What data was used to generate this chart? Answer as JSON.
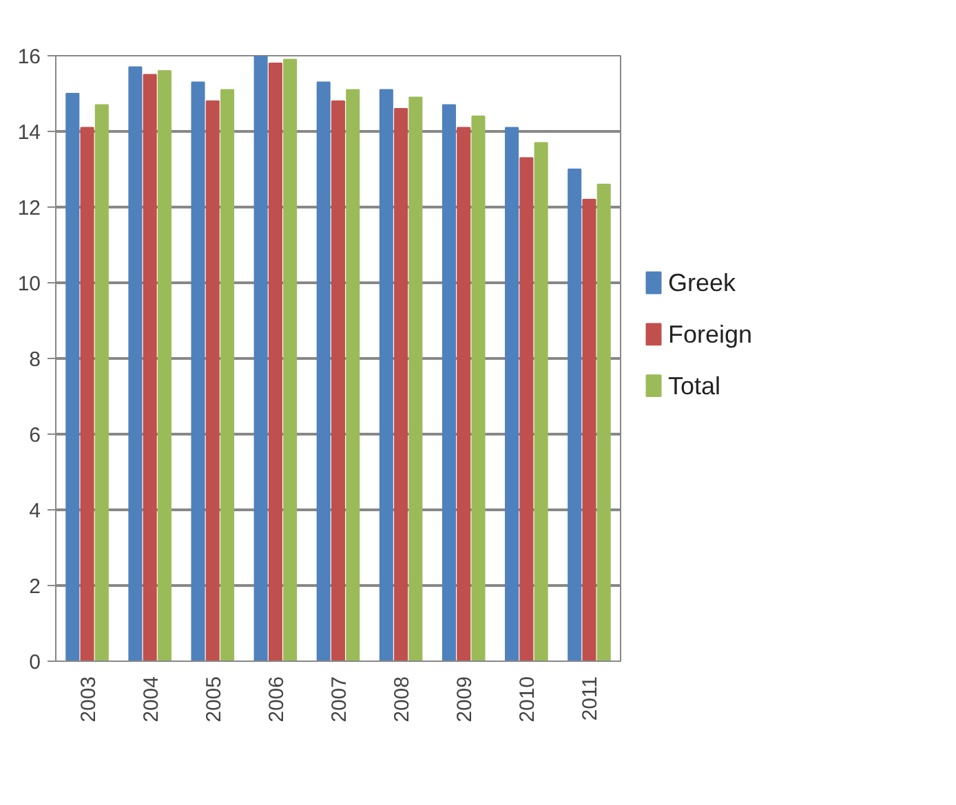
{
  "chart_data": {
    "type": "bar",
    "categories": [
      "2003",
      "2004",
      "2005",
      "2006",
      "2007",
      "2008",
      "2009",
      "2010",
      "2011"
    ],
    "series": [
      {
        "name": "Greek",
        "color": "#4f81bd",
        "values": [
          15.0,
          15.7,
          15.3,
          16.0,
          15.3,
          15.1,
          14.7,
          14.1,
          13.0
        ]
      },
      {
        "name": "Foreign",
        "color": "#c0504d",
        "values": [
          14.1,
          15.5,
          14.8,
          15.8,
          14.8,
          14.6,
          14.1,
          13.3,
          12.2
        ]
      },
      {
        "name": "Total",
        "color": "#9bbb59",
        "values": [
          14.7,
          15.6,
          15.1,
          15.9,
          15.1,
          14.9,
          14.4,
          13.7,
          12.6
        ]
      }
    ],
    "ylim": [
      0,
      16
    ],
    "yticks": [
      0,
      2,
      4,
      6,
      8,
      10,
      12,
      14,
      16
    ],
    "grid": "y",
    "legend": "right"
  }
}
